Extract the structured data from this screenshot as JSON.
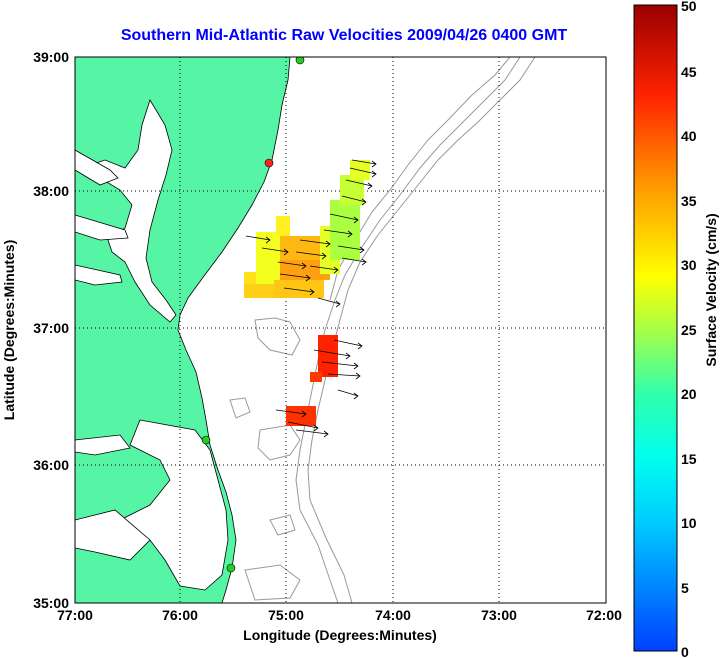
{
  "title": "Southern Mid-Atlantic Raw Velocities 2009/04/26 0400 GMT",
  "x_axis": {
    "label": "Longitude (Degrees:Minutes)",
    "ticks": [
      "77:00",
      "76:00",
      "75:00",
      "74:00",
      "73:00",
      "72:00"
    ]
  },
  "y_axis": {
    "label": "Latitude (Degrees:Minutes)",
    "ticks": [
      "39:00",
      "38:00",
      "37:00",
      "36:00",
      "35:00"
    ]
  },
  "colorbar": {
    "label": "Surface Velocity (cm/s)",
    "ticks": [
      "50",
      "45",
      "40",
      "35",
      "30",
      "25",
      "20",
      "15",
      "10",
      "5",
      "0"
    ],
    "min": 0,
    "max": 50
  },
  "colors": {
    "land": "#55f5a5",
    "title": "#0000ff",
    "grid": "#000000",
    "bathymetry": "#999999"
  },
  "stations": [
    {
      "color": "#ff2020"
    },
    {
      "color": "#22cc22"
    },
    {
      "color": "#22cc22"
    },
    {
      "color": "#22cc22"
    }
  ]
}
